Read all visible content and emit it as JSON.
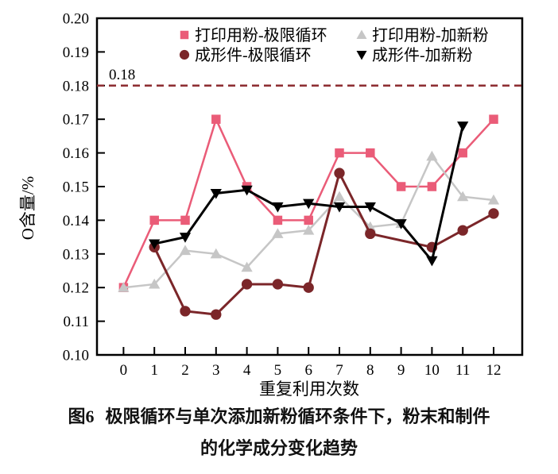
{
  "figure": {
    "caption_label": "图6",
    "caption_line1": "极限循环与单次添加新粉循环条件下，粉末和制件",
    "caption_line2": "的化学成分变化趋势"
  },
  "chart_data": {
    "type": "line",
    "title": "",
    "xlabel": "重复利用次数",
    "ylabel": "O含量/%",
    "x": [
      0,
      1,
      2,
      3,
      4,
      5,
      6,
      7,
      8,
      9,
      10,
      11,
      12
    ],
    "xlim": [
      0,
      12
    ],
    "ylim": [
      0.1,
      0.2
    ],
    "ytick_step": 0.01,
    "grid": false,
    "legend_position": "top-inside",
    "axis_color": "#000000",
    "series": [
      {
        "name": "打印用粉-极限循环",
        "marker": "square",
        "color": "#ea5c78",
        "values": [
          0.12,
          0.14,
          0.14,
          0.17,
          0.15,
          0.14,
          0.14,
          0.16,
          0.16,
          0.15,
          0.15,
          0.16,
          0.17
        ]
      },
      {
        "name": "打印用粉-加新粉",
        "marker": "triangle-up",
        "color": "#c6c6c6",
        "values": [
          0.12,
          0.121,
          0.131,
          0.13,
          0.126,
          0.136,
          0.137,
          0.147,
          0.138,
          0.139,
          0.159,
          0.147,
          0.146
        ]
      },
      {
        "name": "成形件-极限循环",
        "marker": "circle",
        "color": "#7b2629",
        "values": [
          null,
          0.132,
          0.113,
          0.112,
          0.121,
          0.121,
          0.12,
          0.154,
          0.136,
          null,
          0.132,
          0.137,
          0.142
        ]
      },
      {
        "name": "成形件-加新粉",
        "marker": "triangle-down",
        "color": "#000000",
        "values": [
          null,
          0.133,
          0.135,
          0.148,
          0.149,
          0.144,
          0.145,
          0.144,
          0.144,
          0.139,
          0.128,
          0.168,
          null
        ]
      }
    ],
    "reference_line": {
      "value": 0.18,
      "label": "0.18",
      "color": "#8e2f33",
      "style": "dashed"
    }
  }
}
